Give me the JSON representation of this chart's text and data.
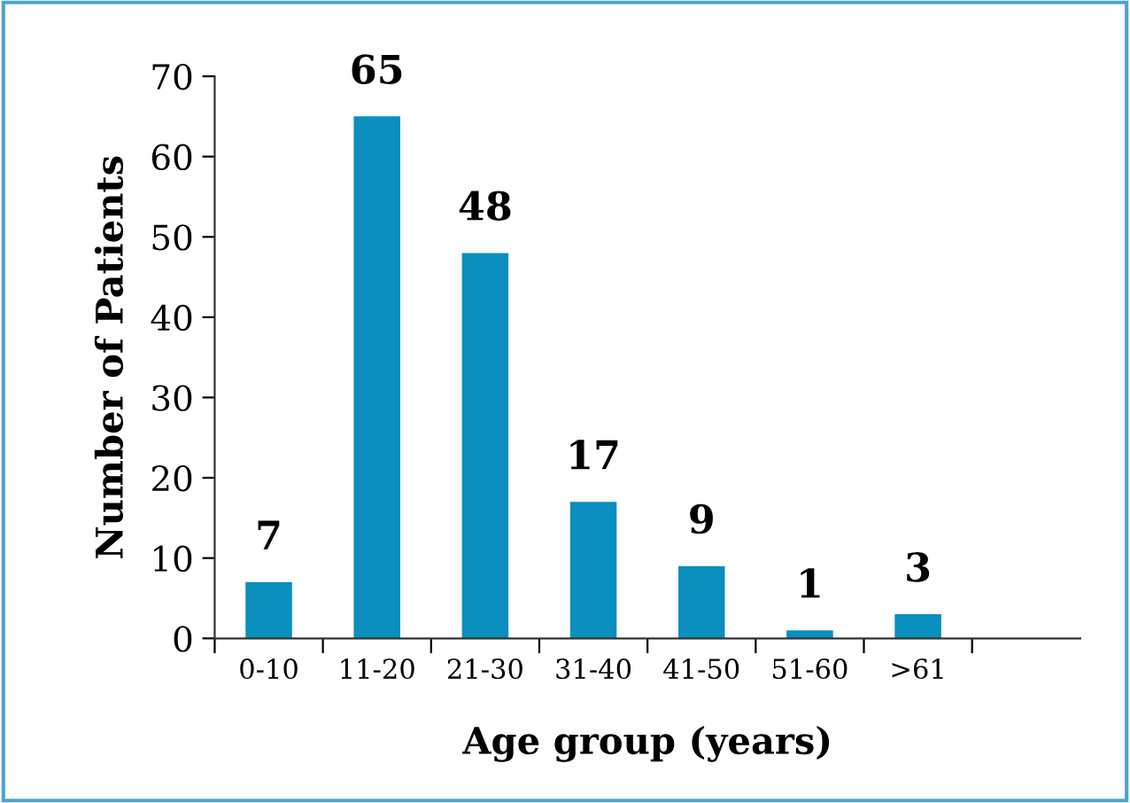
{
  "chart_data": {
    "type": "bar",
    "xlabel": "Age group (years)",
    "ylabel": "Number of Patients",
    "categories": [
      "0-10",
      "11-20",
      "21-30",
      "31-40",
      "41-50",
      "51-60",
      ">61",
      null
    ],
    "values": [
      7,
      65,
      48,
      17,
      9,
      1,
      3,
      null
    ],
    "color": "#0a8fbf",
    "ylim": [
      0,
      70
    ],
    "yticks": [
      0,
      10,
      20,
      30,
      40,
      50,
      60,
      70
    ],
    "data_labels": true
  }
}
